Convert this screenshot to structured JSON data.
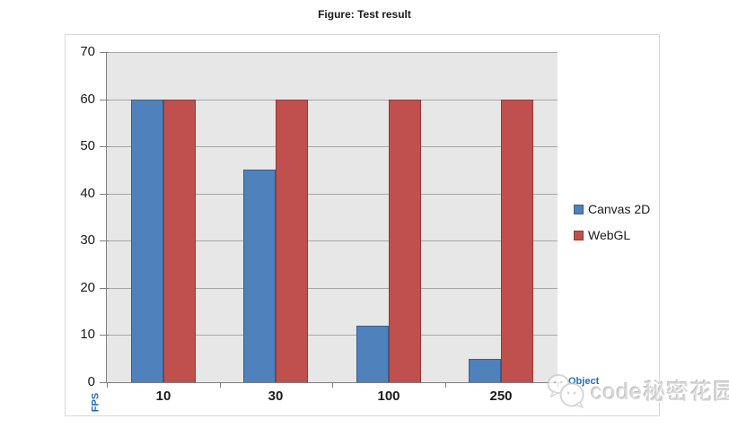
{
  "figure_title": "Figure: Test result",
  "chart_data": {
    "type": "bar",
    "title": "Figure: Test result",
    "categories": [
      "10",
      "30",
      "100",
      "250"
    ],
    "series": [
      {
        "name": "Canvas 2D",
        "values": [
          60,
          45,
          12,
          5
        ],
        "fill": "#4F81BD",
        "border": "#385D8A"
      },
      {
        "name": "WebGL",
        "values": [
          60,
          60,
          60,
          60
        ],
        "fill": "#C0504D",
        "border": "#953735"
      }
    ],
    "xlabel": "Object",
    "ylabel": "FPS",
    "ylim": [
      0,
      70
    ],
    "yticks": [
      0,
      10,
      20,
      30,
      40,
      50,
      60,
      70
    ],
    "grid": true,
    "legend_position": "right",
    "plot_bg": "#E7E7E7",
    "gridline_color": "#A6A6A6",
    "axis_color": "#7F7F7F",
    "axis_title_color": "#1F6FBF",
    "tick_label_color": "#1a1a1a"
  },
  "watermark": {
    "text": "code秘密花园",
    "icon": "wechat-logo-icon"
  }
}
